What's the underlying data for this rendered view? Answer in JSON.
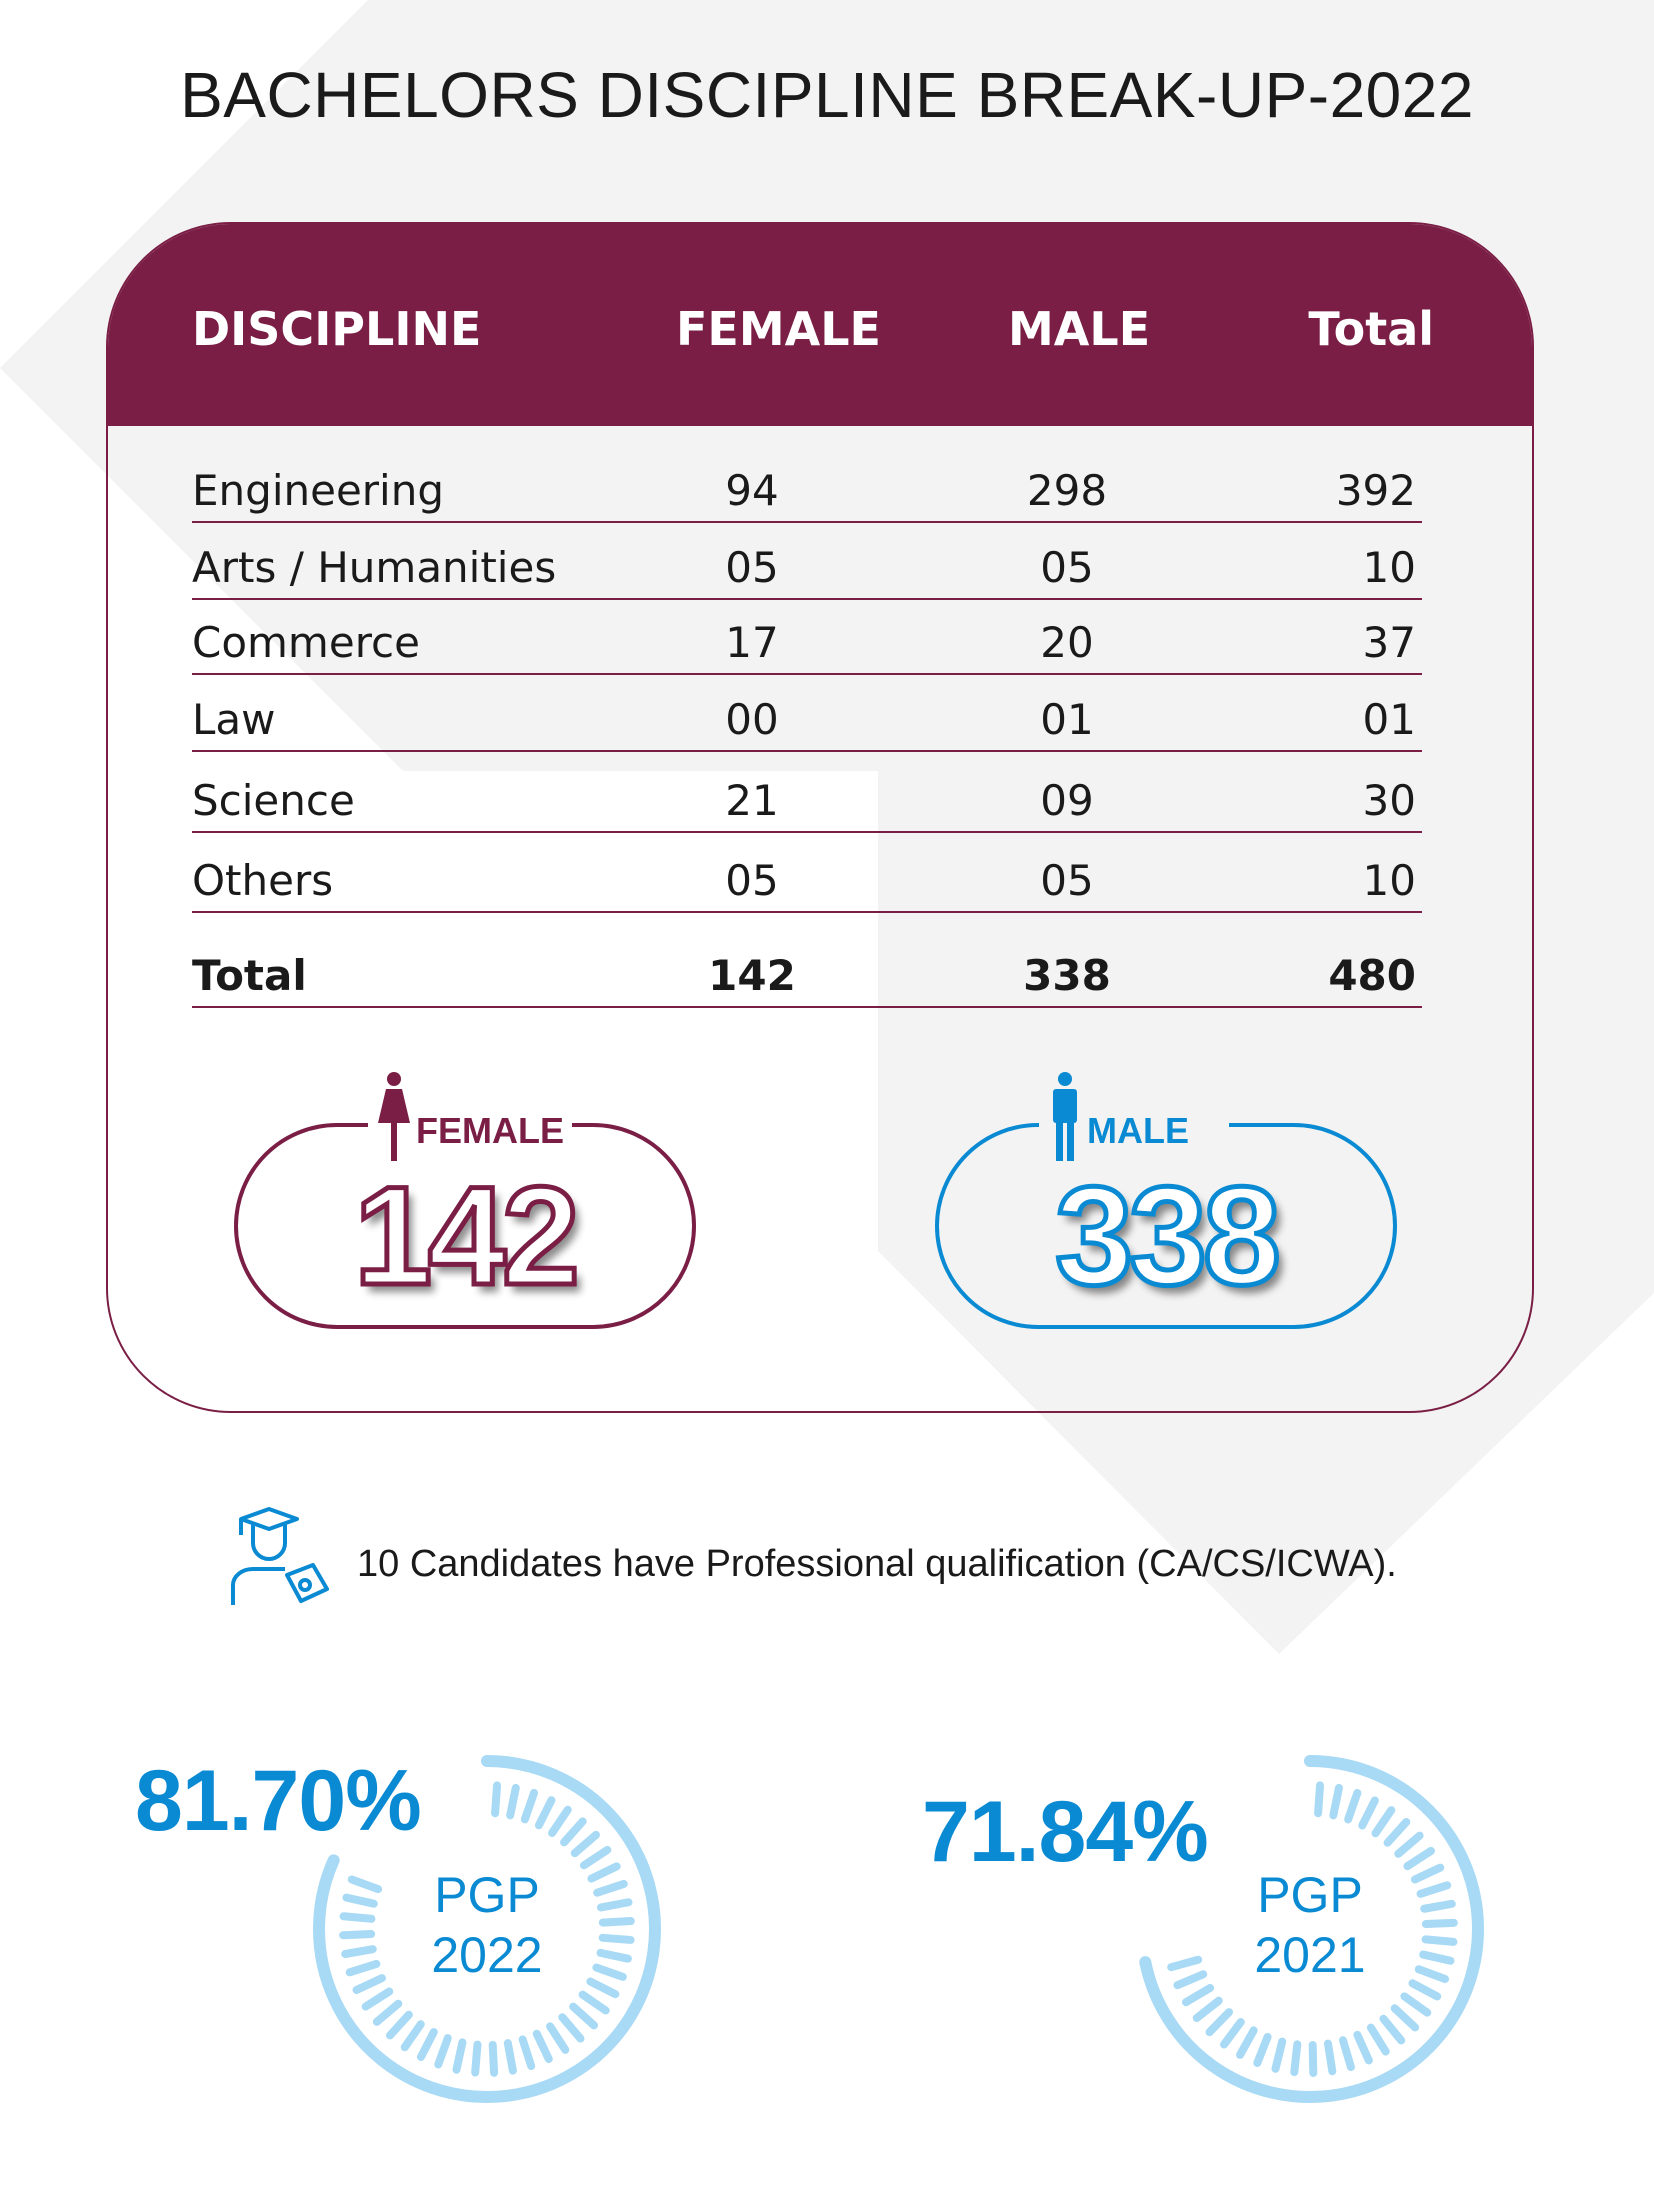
{
  "title": "BACHELORS DISCIPLINE BREAK-UP-2022",
  "colors": {
    "maroon": "#7a1e45",
    "blue": "#0a8ad2",
    "light_blue": "#a8d9f5",
    "background_gray": "#f3f3f3"
  },
  "table": {
    "headers": [
      "DISCIPLINE",
      "FEMALE",
      "MALE",
      "Total"
    ],
    "rows": [
      [
        "Engineering",
        "94",
        "298",
        "392"
      ],
      [
        "Arts / Humanities",
        "05",
        "05",
        "10"
      ],
      [
        "Commerce",
        "17",
        "20",
        "37"
      ],
      [
        "Law",
        "00",
        "01",
        "01"
      ],
      [
        "Science",
        "21",
        "09",
        "30"
      ],
      [
        "Others",
        "05",
        "05",
        "10"
      ]
    ],
    "total": [
      "Total",
      "142",
      "338",
      "480"
    ]
  },
  "summary": {
    "female": {
      "label": "FEMALE",
      "value": "142",
      "icon": "female-person-icon"
    },
    "male": {
      "label": "MALE",
      "value": "338",
      "icon": "male-person-icon"
    }
  },
  "professional": {
    "icon": "graduate-certificate-icon",
    "text": "10 Candidates have Professional qualification (CA/CS/ICWA)."
  },
  "gauges": [
    {
      "percent_label": "81.70%",
      "value": 81.7,
      "line1": "PGP",
      "line2": "2022"
    },
    {
      "percent_label": "71.84%",
      "value": 71.84,
      "line1": "PGP",
      "line2": "2021"
    }
  ]
}
